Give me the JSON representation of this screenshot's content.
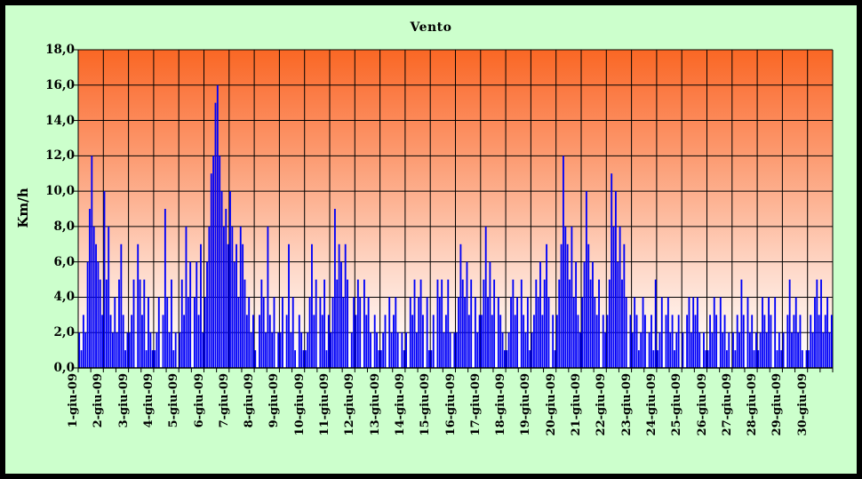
{
  "window": {
    "frame_color": "#000000",
    "background_color": "#ccffcc"
  },
  "chart_data": {
    "type": "bar",
    "title": "Vento",
    "xlabel": "",
    "ylabel": "Km/h",
    "ylim": [
      0,
      18
    ],
    "ytick_step": 2,
    "ytick_labels": [
      "0,0",
      "2,0",
      "4,0",
      "6,0",
      "8,0",
      "10,0",
      "12,0",
      "14,0",
      "16,0",
      "18,0"
    ],
    "grid": true,
    "legend_position": "none",
    "categories": [
      "1-giu-09",
      "2-giu-09",
      "3-giu-09",
      "4-giu-09",
      "5-giu-09",
      "6-giu-09",
      "7-giu-09",
      "8-giu-09",
      "9-giu-09",
      "10-giu-09",
      "11-giu-09",
      "12-giu-09",
      "13-giu-09",
      "14-giu-09",
      "15-giu-09",
      "16-giu-09",
      "17-giu-09",
      "18-giu-09",
      "19-giu-09",
      "20-giu-09",
      "21-giu-09",
      "22-giu-09",
      "23-giu-09",
      "24-giu-09",
      "25-giu-09",
      "26-giu-09",
      "27-giu-09",
      "28-giu-09",
      "29-giu-09",
      "30-giu-09"
    ],
    "values_per_day": 12,
    "series": [
      {
        "name": "Vento",
        "daily_values": [
          [
            2,
            1,
            3,
            2,
            6,
            9,
            12,
            8,
            7,
            6,
            5,
            3
          ],
          [
            10,
            5,
            8,
            3,
            2,
            4,
            2,
            5,
            7,
            3,
            1,
            2
          ],
          [
            2,
            3,
            5,
            0,
            7,
            5,
            3,
            5,
            1,
            4,
            2,
            1
          ],
          [
            1,
            2,
            4,
            0,
            3,
            9,
            4,
            2,
            5,
            1,
            2,
            0
          ],
          [
            2,
            5,
            3,
            8,
            4,
            6,
            0,
            4,
            6,
            3,
            7,
            2
          ],
          [
            4,
            6,
            8,
            11,
            12,
            15,
            16,
            12,
            10,
            8,
            9,
            7
          ],
          [
            10,
            8,
            6,
            7,
            4,
            8,
            7,
            5,
            3,
            4,
            2,
            3
          ],
          [
            1,
            0,
            3,
            5,
            4,
            2,
            8,
            3,
            2,
            4,
            0,
            2
          ],
          [
            2,
            4,
            0,
            3,
            7,
            2,
            4,
            1,
            0,
            3,
            2,
            1
          ],
          [
            1,
            2,
            4,
            7,
            3,
            5,
            0,
            4,
            3,
            5,
            1,
            3
          ],
          [
            2,
            4,
            9,
            5,
            7,
            6,
            4,
            7,
            5,
            0,
            2,
            4
          ],
          [
            3,
            5,
            4,
            0,
            5,
            3,
            4,
            2,
            0,
            3,
            2,
            1
          ],
          [
            1,
            2,
            3,
            0,
            4,
            2,
            3,
            4,
            2,
            0,
            2,
            1
          ],
          [
            2,
            0,
            4,
            3,
            5,
            2,
            4,
            5,
            3,
            0,
            4,
            1
          ],
          [
            1,
            3,
            0,
            5,
            4,
            5,
            2,
            3,
            5,
            2,
            0,
            2
          ],
          [
            2,
            4,
            7,
            5,
            4,
            6,
            3,
            5,
            0,
            4,
            2,
            3
          ],
          [
            3,
            5,
            8,
            4,
            6,
            3,
            5,
            0,
            4,
            3,
            2,
            1
          ],
          [
            1,
            2,
            4,
            5,
            3,
            4,
            0,
            5,
            3,
            2,
            4,
            1
          ],
          [
            2,
            3,
            5,
            4,
            6,
            3,
            5,
            7,
            4,
            0,
            3,
            1
          ],
          [
            3,
            5,
            7,
            12,
            8,
            7,
            5,
            8,
            4,
            6,
            3,
            2
          ],
          [
            4,
            6,
            10,
            7,
            5,
            6,
            4,
            3,
            5,
            0,
            3,
            2
          ],
          [
            3,
            5,
            11,
            8,
            10,
            6,
            8,
            5,
            7,
            4,
            0,
            3
          ],
          [
            2,
            4,
            3,
            1,
            2,
            4,
            3,
            0,
            2,
            3,
            1,
            5
          ],
          [
            1,
            2,
            4,
            0,
            3,
            4,
            2,
            3,
            1,
            2,
            3,
            0
          ],
          [
            2,
            0,
            3,
            4,
            2,
            4,
            3,
            4,
            2,
            0,
            2,
            1
          ],
          [
            1,
            3,
            2,
            4,
            3,
            0,
            4,
            2,
            3,
            1,
            2,
            0
          ],
          [
            2,
            1,
            3,
            2,
            5,
            3,
            0,
            4,
            2,
            3,
            1,
            2
          ],
          [
            1,
            2,
            4,
            3,
            2,
            4,
            3,
            0,
            4,
            1,
            2,
            1
          ],
          [
            2,
            0,
            3,
            5,
            2,
            3,
            4,
            2,
            3,
            1,
            0,
            1
          ],
          [
            1,
            3,
            2,
            4,
            5,
            3,
            5,
            2,
            3,
            4,
            2,
            3
          ]
        ]
      }
    ],
    "colors": {
      "bar": "#0000f8",
      "gridline": "#000000",
      "axis": "#000000",
      "text": "#000000"
    },
    "plot_gradient_stops": [
      {
        "offset": 0,
        "color": "#fa6724"
      },
      {
        "offset": 0.14,
        "color": "#fb7c46"
      },
      {
        "offset": 0.3,
        "color": "#fc9569"
      },
      {
        "offset": 0.5,
        "color": "#fdb799"
      },
      {
        "offset": 0.7,
        "color": "#fedacb"
      },
      {
        "offset": 0.88,
        "color": "#fff3ee"
      },
      {
        "offset": 1,
        "color": "#ffffff"
      }
    ]
  }
}
